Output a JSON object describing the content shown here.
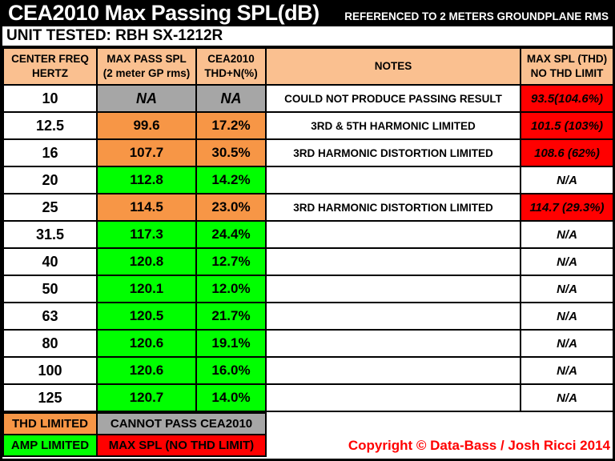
{
  "title": {
    "main": "CEA2010 Max Passing SPL(dB)",
    "sub": "REFERENCED TO 2 METERS GROUNDPLANE RMS"
  },
  "unit_tested": "UNIT TESTED: RBH SX-1212R",
  "table": {
    "headers": {
      "freq": [
        "CENTER FREQ",
        "HERTZ"
      ],
      "max_pass": [
        "MAX PASS SPL",
        "(2 meter GP rms)"
      ],
      "thd": [
        "CEA2010",
        "THD+N(%)"
      ],
      "notes": [
        "NOTES"
      ],
      "max_spl": [
        "MAX SPL (THD)",
        "NO THD LIMIT"
      ]
    },
    "rows": [
      {
        "freq": "10",
        "spl": "NA",
        "thd": "NA",
        "note": "COULD NOT PRODUCE PASSING RESULT",
        "max": "93.5(104.6%)",
        "color": "gray",
        "max_color": "red"
      },
      {
        "freq": "12.5",
        "spl": "99.6",
        "thd": "17.2%",
        "note": "3RD & 5TH HARMONIC LIMITED",
        "max": "101.5 (103%)",
        "color": "orange",
        "max_color": "red"
      },
      {
        "freq": "16",
        "spl": "107.7",
        "thd": "30.5%",
        "note": "3RD HARMONIC DISTORTION LIMITED",
        "max": "108.6 (62%)",
        "color": "orange",
        "max_color": "red"
      },
      {
        "freq": "20",
        "spl": "112.8",
        "thd": "14.2%",
        "note": "",
        "max": "N/A",
        "color": "green",
        "max_color": "white"
      },
      {
        "freq": "25",
        "spl": "114.5",
        "thd": "23.0%",
        "note": "3RD HARMONIC DISTORTION LIMITED",
        "max": "114.7 (29.3%)",
        "color": "orange",
        "max_color": "red"
      },
      {
        "freq": "31.5",
        "spl": "117.3",
        "thd": "24.4%",
        "note": "",
        "max": "N/A",
        "color": "green",
        "max_color": "white"
      },
      {
        "freq": "40",
        "spl": "120.8",
        "thd": "12.7%",
        "note": "",
        "max": "N/A",
        "color": "green",
        "max_color": "white"
      },
      {
        "freq": "50",
        "spl": "120.1",
        "thd": "12.0%",
        "note": "",
        "max": "N/A",
        "color": "green",
        "max_color": "white"
      },
      {
        "freq": "63",
        "spl": "120.5",
        "thd": "21.7%",
        "note": "",
        "max": "N/A",
        "color": "green",
        "max_color": "white"
      },
      {
        "freq": "80",
        "spl": "120.6",
        "thd": "19.1%",
        "note": "",
        "max": "N/A",
        "color": "green",
        "max_color": "white"
      },
      {
        "freq": "100",
        "spl": "120.6",
        "thd": "16.0%",
        "note": "",
        "max": "N/A",
        "color": "green",
        "max_color": "white"
      },
      {
        "freq": "125",
        "spl": "120.7",
        "thd": "14.0%",
        "note": "",
        "max": "N/A",
        "color": "green",
        "max_color": "white"
      }
    ]
  },
  "legend": {
    "rows": [
      {
        "label": "THD LIMITED",
        "label_color": "orange",
        "desc": "CANNOT PASS CEA2010",
        "desc_color": "gray"
      },
      {
        "label": "AMP LIMITED",
        "label_color": "green",
        "desc": "MAX SPL (NO THD LIMIT)",
        "desc_color": "red"
      }
    ]
  },
  "copyright": "Copyright © Data-Bass / Josh Ricci 2014",
  "colors": {
    "orange": "#F79646",
    "green": "#00FF00",
    "gray": "#A6A6A6",
    "red": "#FF0000",
    "white": "#FFFFFF",
    "header_bg": "#FAC090",
    "title_bg": "#000000",
    "title_text": "#FFFFFF",
    "copyright_red": "#FF0000"
  },
  "chart_data": {
    "type": "table",
    "title": "CEA2010 Max Passing SPL(dB) REFERENCED TO 2 METERS GROUNDPLANE RMS",
    "unit_tested": "RBH SX-1212R",
    "columns": [
      "CENTER FREQ HERTZ",
      "MAX PASS SPL (2 meter GP rms)",
      "CEA2010 THD+N(%)",
      "NOTES",
      "MAX SPL (THD) NO THD LIMIT"
    ],
    "rows": [
      [
        "10",
        "NA",
        "NA",
        "COULD NOT PRODUCE PASSING RESULT",
        "93.5(104.6%)"
      ],
      [
        "12.5",
        "99.6",
        "17.2%",
        "3RD & 5TH HARMONIC LIMITED",
        "101.5 (103%)"
      ],
      [
        "16",
        "107.7",
        "30.5%",
        "3RD HARMONIC DISTORTION LIMITED",
        "108.6 (62%)"
      ],
      [
        "20",
        "112.8",
        "14.2%",
        "",
        "N/A"
      ],
      [
        "25",
        "114.5",
        "23.0%",
        "3RD HARMONIC DISTORTION LIMITED",
        "114.7 (29.3%)"
      ],
      [
        "31.5",
        "117.3",
        "24.4%",
        "",
        "N/A"
      ],
      [
        "40",
        "120.8",
        "12.7%",
        "",
        "N/A"
      ],
      [
        "50",
        "120.1",
        "12.0%",
        "",
        "N/A"
      ],
      [
        "63",
        "120.5",
        "21.7%",
        "",
        "N/A"
      ],
      [
        "80",
        "120.6",
        "19.1%",
        "",
        "N/A"
      ],
      [
        "100",
        "120.6",
        "16.0%",
        "",
        "N/A"
      ],
      [
        "125",
        "120.7",
        "14.0%",
        "",
        "N/A"
      ]
    ],
    "legend": {
      "orange": "THD LIMITED",
      "gray": "CANNOT PASS CEA2010",
      "green": "AMP LIMITED",
      "red": "MAX SPL (NO THD LIMIT)"
    }
  }
}
